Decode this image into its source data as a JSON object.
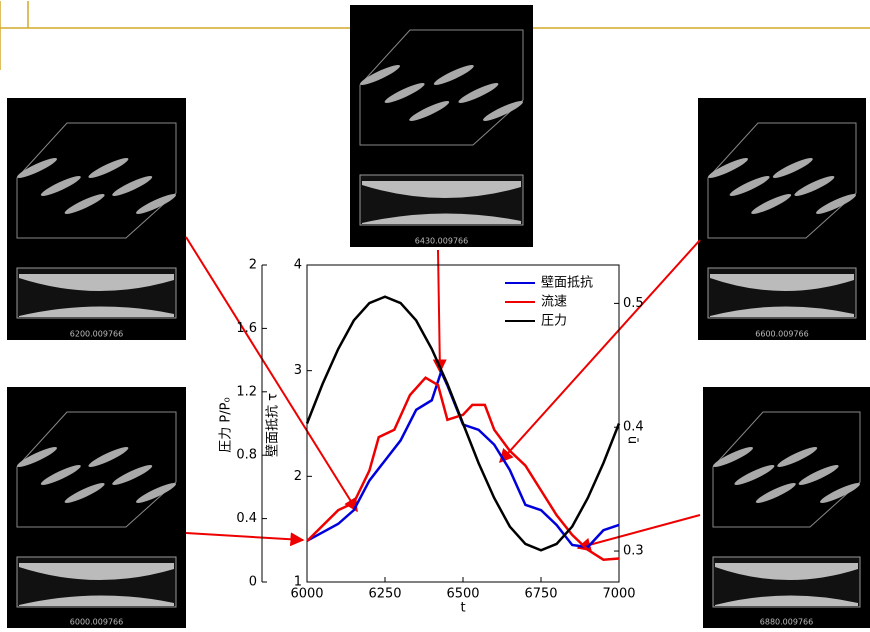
{
  "chart_data": {
    "type": "line",
    "xlabel": "t",
    "xlim": [
      6000,
      7000
    ],
    "xticks": [
      6000,
      6250,
      6500,
      6750,
      7000
    ],
    "ylabel": "壁面抵抗 τ",
    "ylim": [
      1,
      4
    ],
    "yticks": [
      1,
      2,
      3,
      4
    ],
    "y2label": "ū",
    "y2lim": [
      0.275,
      0.531
    ],
    "y2ticks": [
      0.3,
      0.4,
      0.5
    ],
    "y3label": "圧力 P/P₀",
    "y3lim": [
      0,
      2
    ],
    "y3ticks": [
      0,
      0.4,
      0.8,
      1.2,
      1.6,
      2
    ],
    "series": [
      {
        "name": "壁面抵抗",
        "color": "#0000dd",
        "axis": "y",
        "x": [
          6000,
          6100,
          6150,
          6200,
          6250,
          6300,
          6350,
          6400,
          6430,
          6450,
          6500,
          6550,
          6600,
          6650,
          6700,
          6750,
          6800,
          6850,
          6900,
          6950,
          7000
        ],
        "values": [
          1.39,
          1.55,
          1.68,
          1.96,
          2.15,
          2.34,
          2.63,
          2.72,
          2.99,
          2.86,
          2.49,
          2.44,
          2.3,
          2.06,
          1.73,
          1.68,
          1.54,
          1.35,
          1.33,
          1.49,
          1.54
        ]
      },
      {
        "name": "流速",
        "color": "#ee0000",
        "axis": "y2",
        "x": [
          6000,
          6100,
          6150,
          6200,
          6230,
          6280,
          6330,
          6380,
          6420,
          6450,
          6500,
          6530,
          6570,
          6600,
          6650,
          6700,
          6750,
          6800,
          6850,
          6900,
          6950,
          7000
        ],
        "values": [
          0.308,
          0.333,
          0.339,
          0.365,
          0.392,
          0.398,
          0.426,
          0.44,
          0.434,
          0.406,
          0.41,
          0.418,
          0.418,
          0.398,
          0.381,
          0.369,
          0.349,
          0.329,
          0.313,
          0.301,
          0.293,
          0.294
        ]
      },
      {
        "name": "圧力",
        "color": "#000000",
        "axis": "y3",
        "x": [
          6000,
          6050,
          6100,
          6150,
          6200,
          6250,
          6300,
          6350,
          6400,
          6450,
          6500,
          6550,
          6600,
          6650,
          6700,
          6750,
          6800,
          6850,
          6900,
          6950,
          7000
        ],
        "values": [
          1,
          1.25,
          1.47,
          1.65,
          1.76,
          1.8,
          1.76,
          1.65,
          1.47,
          1.25,
          1,
          0.75,
          0.53,
          0.35,
          0.24,
          0.2,
          0.24,
          0.35,
          0.53,
          0.75,
          1
        ]
      }
    ]
  },
  "images": [
    {
      "caption": "6200.009766"
    },
    {
      "caption": "6430.009766"
    },
    {
      "caption": "6600.009766"
    },
    {
      "caption": "6000.009766"
    },
    {
      "caption": "6880.009766"
    }
  ]
}
